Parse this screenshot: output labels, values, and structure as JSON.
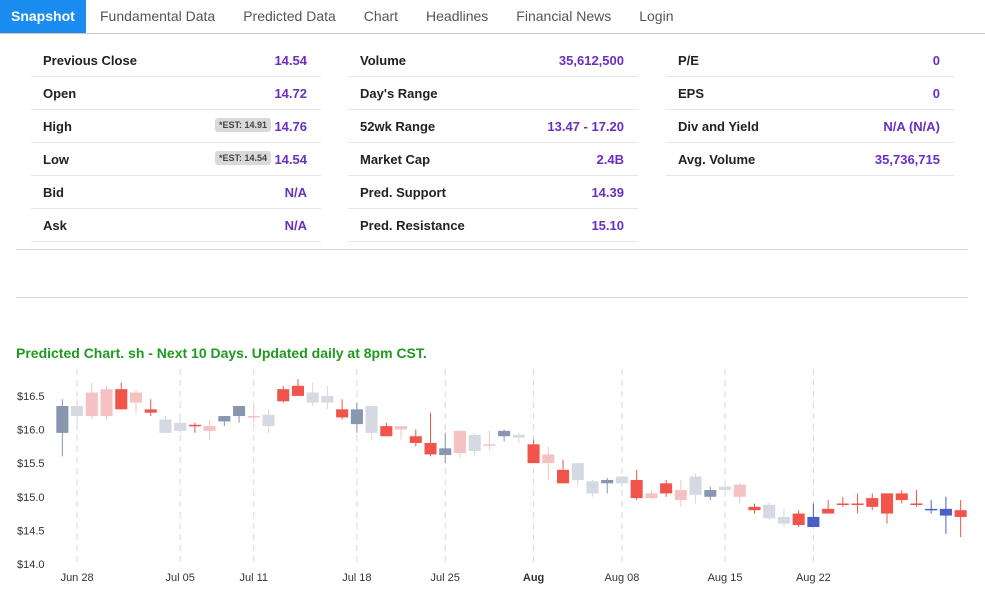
{
  "nav": {
    "tabs": [
      {
        "label": "Snapshot",
        "active": true
      },
      {
        "label": "Fundamental Data",
        "active": false
      },
      {
        "label": "Predicted Data",
        "active": false
      },
      {
        "label": "Chart",
        "active": false
      },
      {
        "label": "Headlines",
        "active": false
      },
      {
        "label": "Financial News",
        "active": false
      },
      {
        "label": "Login",
        "active": false
      }
    ]
  },
  "snapshot": {
    "col1": [
      {
        "label": "Previous Close",
        "value": "14.54"
      },
      {
        "label": "Open",
        "value": "14.72"
      },
      {
        "label": "High",
        "value": "14.76",
        "est": "*EST: 14.91"
      },
      {
        "label": "Low",
        "value": "14.54",
        "est": "*EST: 14.54"
      },
      {
        "label": "Bid",
        "value": "N/A"
      },
      {
        "label": "Ask",
        "value": "N/A"
      }
    ],
    "col2": [
      {
        "label": "Volume",
        "value": "35,612,500"
      },
      {
        "label": "Day's Range",
        "value": ""
      },
      {
        "label": "52wk Range",
        "value": "13.47 - 17.20"
      },
      {
        "label": "Market Cap",
        "value": "2.4B"
      },
      {
        "label": "Pred. Support",
        "value": "14.39"
      },
      {
        "label": "Pred. Resistance",
        "value": "15.10"
      }
    ],
    "col3": [
      {
        "label": "P/E",
        "value": "0"
      },
      {
        "label": "EPS",
        "value": "0"
      },
      {
        "label": "Div and Yield",
        "value": "N/A (N/A)"
      },
      {
        "label": "Avg. Volume",
        "value": "35,736,715"
      }
    ]
  },
  "chart_title": "Predicted Chart. sh - Next 10 Days. Updated daily at 8pm CST.",
  "colors": {
    "accent": "#1a8cf0",
    "value": "#6a2fc0",
    "title": "#1f9a1f",
    "up_gray": "#d5d9e2",
    "down_pink": "#f4c2c2",
    "down_red": "#f0544a",
    "up_blue": "#4a5fc8",
    "up_slate": "#8896b0"
  },
  "chart_data": {
    "type": "candlestick",
    "ylim": [
      14.0,
      16.9
    ],
    "yticks": [
      14.0,
      14.5,
      15.0,
      15.5,
      16.0,
      16.5
    ],
    "ytick_labels": [
      "$14.0",
      "$14.5",
      "$15.0",
      "$15.5",
      "$16.0",
      "$16.5"
    ],
    "xtick_labels": [
      "Jun 28",
      "Jul 05",
      "Jul 11",
      "Jul 18",
      "Jul 25",
      "Aug",
      "Aug 08",
      "Aug 15",
      "Aug 22"
    ],
    "xtick_index": [
      1,
      8,
      13,
      20,
      26,
      32,
      38,
      45,
      51
    ],
    "xtick_bold": [
      false,
      false,
      false,
      false,
      false,
      true,
      false,
      false,
      false
    ],
    "candles": [
      {
        "o": 15.95,
        "h": 16.45,
        "l": 15.6,
        "c": 16.35,
        "k": "slate"
      },
      {
        "o": 16.2,
        "h": 16.45,
        "l": 16.0,
        "c": 16.35,
        "k": "gray"
      },
      {
        "o": 16.2,
        "h": 16.7,
        "l": 16.15,
        "c": 16.55,
        "k": "pink"
      },
      {
        "o": 16.2,
        "h": 16.65,
        "l": 16.15,
        "c": 16.6,
        "k": "pink"
      },
      {
        "o": 16.6,
        "h": 16.7,
        "l": 16.3,
        "c": 16.3,
        "k": "red"
      },
      {
        "o": 16.4,
        "h": 16.6,
        "l": 16.25,
        "c": 16.55,
        "k": "pink"
      },
      {
        "o": 16.3,
        "h": 16.45,
        "l": 16.2,
        "c": 16.25,
        "k": "red"
      },
      {
        "o": 16.15,
        "h": 16.2,
        "l": 15.95,
        "c": 15.95,
        "k": "gray"
      },
      {
        "o": 16.1,
        "h": 16.15,
        "l": 15.95,
        "c": 15.98,
        "k": "gray"
      },
      {
        "o": 16.07,
        "h": 16.1,
        "l": 15.95,
        "c": 16.05,
        "k": "red"
      },
      {
        "o": 16.05,
        "h": 16.15,
        "l": 15.85,
        "c": 15.98,
        "k": "pink"
      },
      {
        "o": 16.12,
        "h": 16.2,
        "l": 16.05,
        "c": 16.2,
        "k": "slate"
      },
      {
        "o": 16.2,
        "h": 16.35,
        "l": 16.1,
        "c": 16.35,
        "k": "slate"
      },
      {
        "o": 16.2,
        "h": 16.35,
        "l": 16.1,
        "c": 16.2,
        "k": "pink"
      },
      {
        "o": 16.05,
        "h": 16.3,
        "l": 15.95,
        "c": 16.22,
        "k": "gray"
      },
      {
        "o": 16.6,
        "h": 16.65,
        "l": 16.4,
        "c": 16.42,
        "k": "red"
      },
      {
        "o": 16.65,
        "h": 16.75,
        "l": 16.5,
        "c": 16.5,
        "k": "red"
      },
      {
        "o": 16.4,
        "h": 16.7,
        "l": 16.35,
        "c": 16.55,
        "k": "gray"
      },
      {
        "o": 16.5,
        "h": 16.65,
        "l": 16.3,
        "c": 16.4,
        "k": "gray"
      },
      {
        "o": 16.3,
        "h": 16.45,
        "l": 16.15,
        "c": 16.18,
        "k": "red"
      },
      {
        "o": 16.08,
        "h": 16.4,
        "l": 15.95,
        "c": 16.3,
        "k": "slate"
      },
      {
        "o": 15.95,
        "h": 16.35,
        "l": 15.85,
        "c": 16.35,
        "k": "gray"
      },
      {
        "o": 16.05,
        "h": 16.1,
        "l": 15.9,
        "c": 15.9,
        "k": "red"
      },
      {
        "o": 16.0,
        "h": 16.05,
        "l": 15.85,
        "c": 16.05,
        "k": "pink"
      },
      {
        "o": 15.9,
        "h": 16.0,
        "l": 15.75,
        "c": 15.8,
        "k": "red"
      },
      {
        "o": 15.8,
        "h": 16.25,
        "l": 15.6,
        "c": 15.63,
        "k": "red"
      },
      {
        "o": 15.62,
        "h": 15.95,
        "l": 15.5,
        "c": 15.72,
        "k": "slate"
      },
      {
        "o": 15.65,
        "h": 15.98,
        "l": 15.58,
        "c": 15.98,
        "k": "pink"
      },
      {
        "o": 15.68,
        "h": 15.95,
        "l": 15.6,
        "c": 15.92,
        "k": "gray"
      },
      {
        "o": 15.78,
        "h": 15.98,
        "l": 15.7,
        "c": 15.78,
        "k": "pink"
      },
      {
        "o": 15.9,
        "h": 16.0,
        "l": 15.82,
        "c": 15.98,
        "k": "slate"
      },
      {
        "o": 15.88,
        "h": 15.95,
        "l": 15.8,
        "c": 15.92,
        "k": "gray"
      },
      {
        "o": 15.78,
        "h": 15.85,
        "l": 15.5,
        "c": 15.5,
        "k": "red"
      },
      {
        "o": 15.5,
        "h": 15.75,
        "l": 15.25,
        "c": 15.63,
        "k": "pink"
      },
      {
        "o": 15.4,
        "h": 15.55,
        "l": 15.2,
        "c": 15.2,
        "k": "red"
      },
      {
        "o": 15.25,
        "h": 15.5,
        "l": 15.15,
        "c": 15.5,
        "k": "gray"
      },
      {
        "o": 15.05,
        "h": 15.25,
        "l": 15.0,
        "c": 15.23,
        "k": "gray"
      },
      {
        "o": 15.2,
        "h": 15.28,
        "l": 15.05,
        "c": 15.25,
        "k": "slate"
      },
      {
        "o": 15.2,
        "h": 15.3,
        "l": 15.15,
        "c": 15.3,
        "k": "gray"
      },
      {
        "o": 15.25,
        "h": 15.4,
        "l": 14.95,
        "c": 14.98,
        "k": "red"
      },
      {
        "o": 15.05,
        "h": 15.1,
        "l": 14.97,
        "c": 14.98,
        "k": "pink"
      },
      {
        "o": 15.2,
        "h": 15.25,
        "l": 15.0,
        "c": 15.05,
        "k": "red"
      },
      {
        "o": 15.1,
        "h": 15.25,
        "l": 14.85,
        "c": 14.95,
        "k": "pink"
      },
      {
        "o": 15.03,
        "h": 15.35,
        "l": 14.9,
        "c": 15.3,
        "k": "gray"
      },
      {
        "o": 15.0,
        "h": 15.15,
        "l": 14.95,
        "c": 15.1,
        "k": "slate"
      },
      {
        "o": 15.1,
        "h": 15.2,
        "l": 15.0,
        "c": 15.15,
        "k": "gray"
      },
      {
        "o": 15.18,
        "h": 15.2,
        "l": 14.9,
        "c": 15.0,
        "k": "pink"
      },
      {
        "o": 14.85,
        "h": 14.9,
        "l": 14.75,
        "c": 14.8,
        "k": "red"
      },
      {
        "o": 14.88,
        "h": 14.92,
        "l": 14.65,
        "c": 14.68,
        "k": "gray"
      },
      {
        "o": 14.7,
        "h": 14.82,
        "l": 14.55,
        "c": 14.6,
        "k": "gray"
      },
      {
        "o": 14.75,
        "h": 14.8,
        "l": 14.55,
        "c": 14.58,
        "k": "red"
      },
      {
        "o": 14.55,
        "h": 14.9,
        "l": 14.55,
        "c": 14.7,
        "k": "blue"
      },
      {
        "o": 14.82,
        "h": 14.95,
        "l": 14.75,
        "c": 14.75,
        "k": "red"
      },
      {
        "o": 14.9,
        "h": 15.0,
        "l": 14.85,
        "c": 14.88,
        "k": "red"
      },
      {
        "o": 14.9,
        "h": 15.05,
        "l": 14.75,
        "c": 14.9,
        "k": "red"
      },
      {
        "o": 14.98,
        "h": 15.05,
        "l": 14.8,
        "c": 14.85,
        "k": "red"
      },
      {
        "o": 15.05,
        "h": 15.05,
        "l": 14.6,
        "c": 14.75,
        "k": "red"
      },
      {
        "o": 15.05,
        "h": 15.1,
        "l": 14.9,
        "c": 14.95,
        "k": "red"
      },
      {
        "o": 14.9,
        "h": 15.1,
        "l": 14.85,
        "c": 14.88,
        "k": "red"
      },
      {
        "o": 14.82,
        "h": 14.95,
        "l": 14.75,
        "c": 14.82,
        "k": "blue"
      },
      {
        "o": 14.72,
        "h": 15.0,
        "l": 14.45,
        "c": 14.82,
        "k": "blue"
      },
      {
        "o": 14.8,
        "h": 14.95,
        "l": 14.4,
        "c": 14.7,
        "k": "red"
      }
    ]
  }
}
